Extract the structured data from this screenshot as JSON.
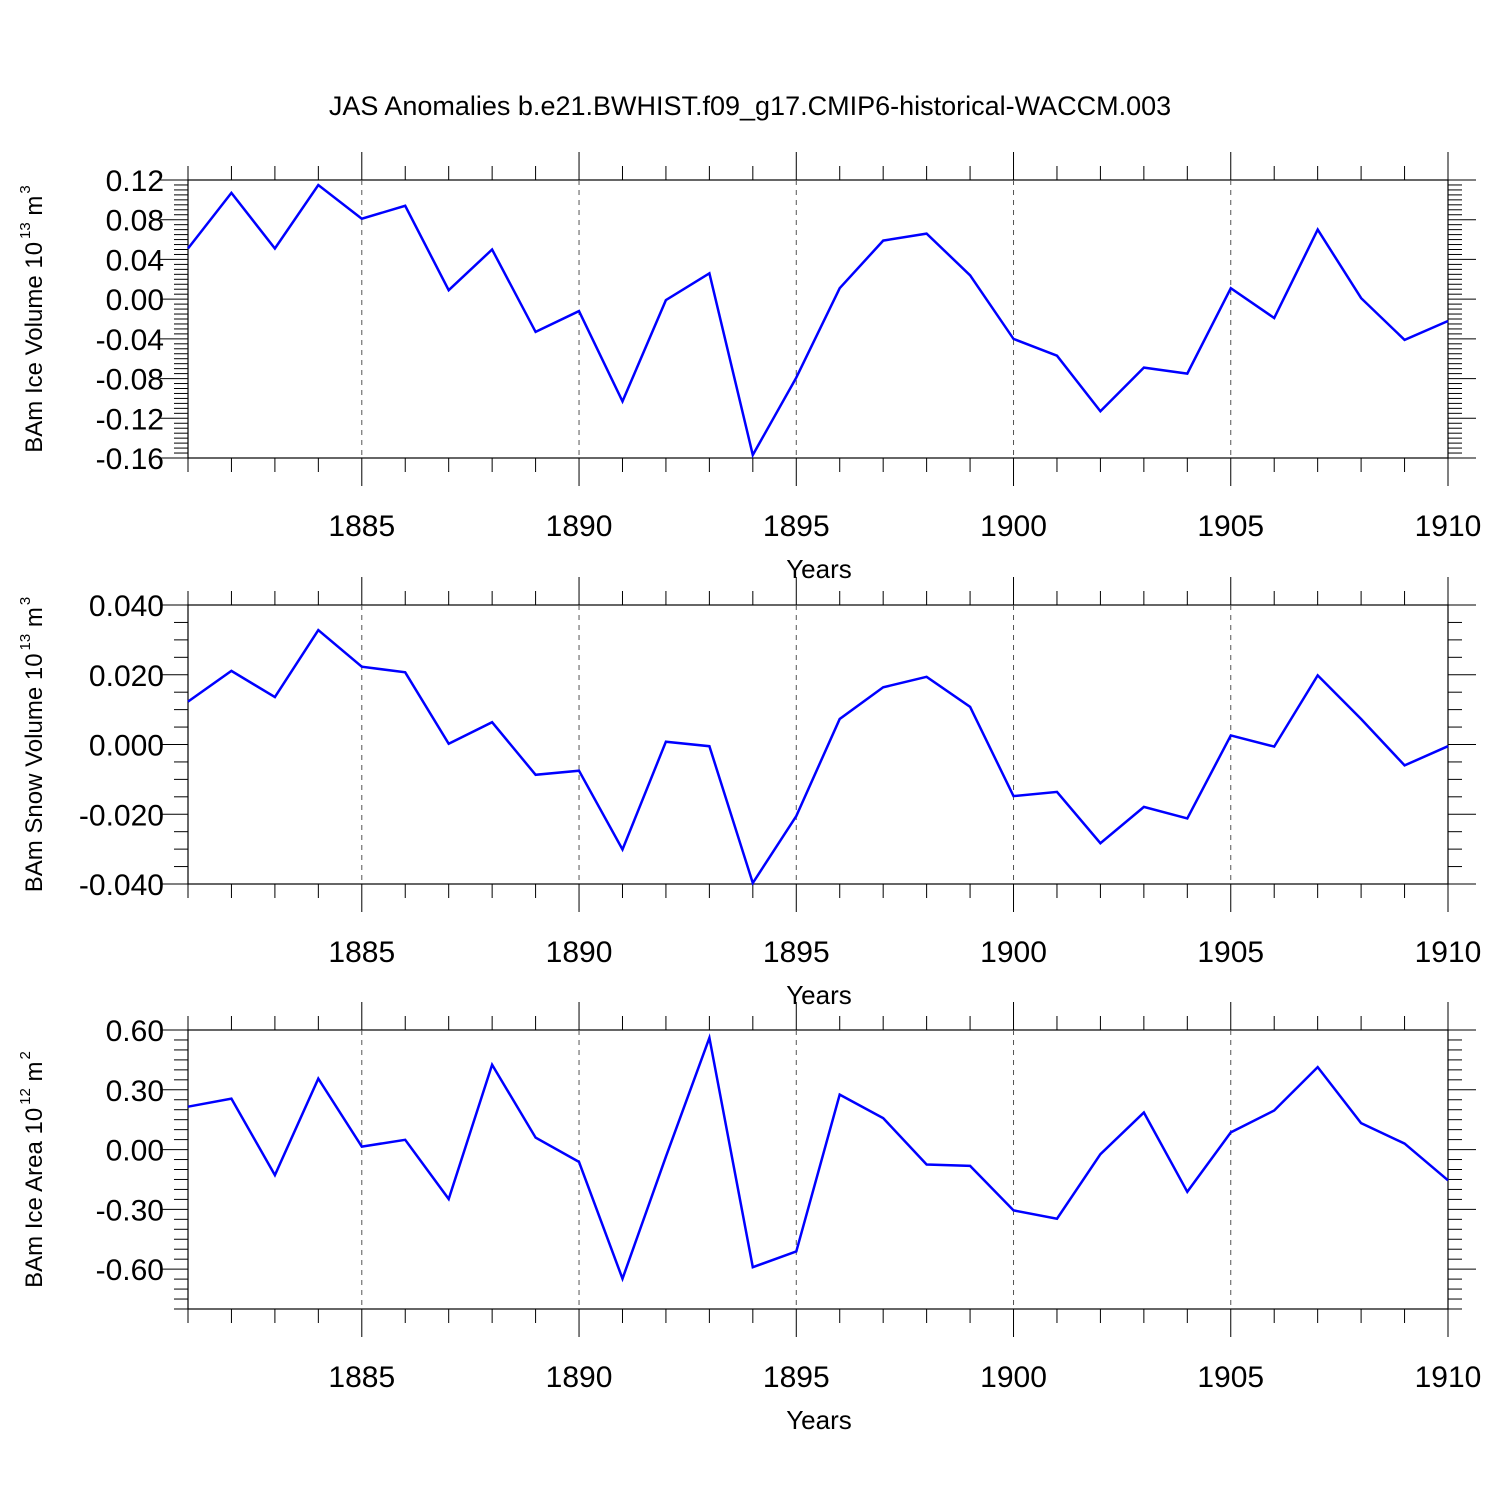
{
  "title": "JAS Anomalies b.e21.BWHIST.f09_g17.CMIP6-historical-WACCM.003",
  "line_color": "#0000ff",
  "chart_data": [
    {
      "type": "line",
      "xlabel": "Years",
      "ylabel": {
        "main": "BAm Ice Volume 10",
        "exp": "13",
        "unit": " m",
        "unit_exp": "3"
      },
      "xlim": [
        1881,
        1910
      ],
      "ylim": [
        -0.16,
        0.12
      ],
      "x_ticks": [
        "1885",
        "1890",
        "1895",
        "1900",
        "1905",
        "1910"
      ],
      "y_ticks": [
        "0.12",
        "0.08",
        "0.04",
        "0.00",
        "-0.04",
        "-0.08",
        "-0.12",
        "-0.16"
      ],
      "x": [
        1881,
        1882,
        1883,
        1884,
        1885,
        1886,
        1887,
        1888,
        1889,
        1890,
        1891,
        1892,
        1893,
        1894,
        1895,
        1896,
        1897,
        1898,
        1899,
        1900,
        1901,
        1902,
        1903,
        1904,
        1905,
        1906,
        1907,
        1908,
        1909,
        1910
      ],
      "y": [
        0.051,
        0.107,
        0.051,
        0.115,
        0.081,
        0.094,
        0.009,
        0.05,
        -0.033,
        -0.012,
        -0.103,
        -0.001,
        0.026,
        -0.157,
        -0.079,
        0.011,
        0.059,
        0.066,
        0.024,
        -0.04,
        -0.057,
        -0.113,
        -0.069,
        -0.075,
        0.011,
        -0.019,
        0.07,
        0.001,
        -0.041,
        -0.022
      ]
    },
    {
      "type": "line",
      "xlabel": "Years",
      "ylabel": {
        "main": "BAm Snow Volume 10",
        "exp": "13",
        "unit": " m",
        "unit_exp": "3"
      },
      "xlim": [
        1881,
        1910
      ],
      "ylim": [
        -0.04,
        0.04
      ],
      "x_ticks": [
        "1885",
        "1890",
        "1895",
        "1900",
        "1905",
        "1910"
      ],
      "y_ticks": [
        "0.040",
        "0.020",
        "0.000",
        "-0.020",
        "-0.040"
      ],
      "x": [
        1881,
        1882,
        1883,
        1884,
        1885,
        1886,
        1887,
        1888,
        1889,
        1890,
        1891,
        1892,
        1893,
        1894,
        1895,
        1896,
        1897,
        1898,
        1899,
        1900,
        1901,
        1902,
        1903,
        1904,
        1905,
        1906,
        1907,
        1908,
        1909,
        1910
      ],
      "y": [
        0.0123,
        0.0211,
        0.0136,
        0.0328,
        0.0223,
        0.0207,
        0.0002,
        0.0064,
        -0.0087,
        -0.0075,
        -0.0301,
        0.0008,
        -0.0005,
        -0.0397,
        -0.0205,
        0.0073,
        0.0164,
        0.0194,
        0.0108,
        -0.0148,
        -0.0136,
        -0.0283,
        -0.0179,
        -0.0212,
        0.0026,
        -0.0006,
        0.0198,
        0.0073,
        -0.006,
        -0.0005
      ]
    },
    {
      "type": "line",
      "xlabel": "Years",
      "ylabel": {
        "main": "BAm Ice Area 10",
        "exp": "12",
        "unit": " m",
        "unit_exp": "2"
      },
      "xlim": [
        1881,
        1910
      ],
      "ylim": [
        -0.8,
        0.6
      ],
      "x_ticks": [
        "1885",
        "1890",
        "1895",
        "1900",
        "1905",
        "1910"
      ],
      "y_ticks": [
        "0.60",
        "0.30",
        "0.00",
        "-0.30",
        "-0.60"
      ],
      "x": [
        1881,
        1882,
        1883,
        1884,
        1885,
        1886,
        1887,
        1888,
        1889,
        1890,
        1891,
        1892,
        1893,
        1894,
        1895,
        1896,
        1897,
        1898,
        1899,
        1900,
        1901,
        1902,
        1903,
        1904,
        1905,
        1906,
        1907,
        1908,
        1909,
        1910
      ],
      "y": [
        0.215,
        0.256,
        -0.128,
        0.356,
        0.015,
        0.049,
        -0.248,
        0.426,
        0.06,
        -0.062,
        -0.648,
        -0.036,
        0.561,
        -0.59,
        -0.511,
        0.276,
        0.158,
        -0.075,
        -0.082,
        -0.305,
        -0.347,
        -0.023,
        0.186,
        -0.212,
        0.086,
        0.196,
        0.414,
        0.133,
        0.03,
        -0.154
      ]
    }
  ]
}
